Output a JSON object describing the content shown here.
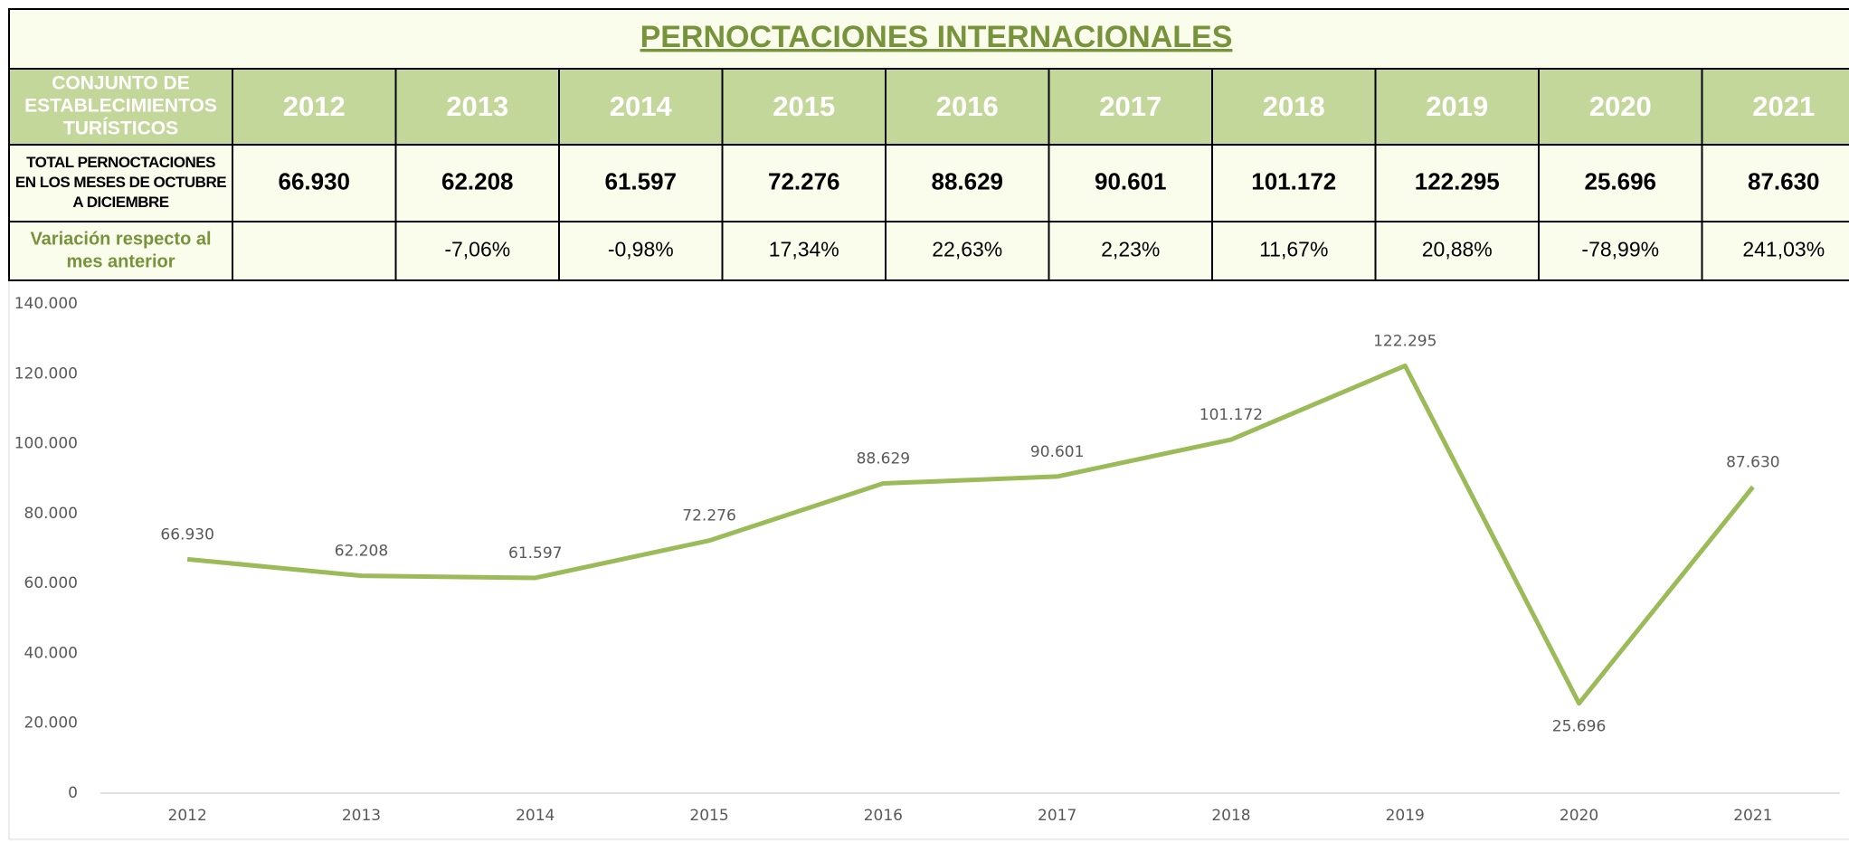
{
  "table": {
    "title": "PERNOCTACIONES INTERNACIONALES",
    "corner": [
      "CONJUNTO DE",
      "ESTABLECIMIENTOS",
      "TURÍSTICOS"
    ],
    "years": [
      "2012",
      "2013",
      "2014",
      "2015",
      "2016",
      "2017",
      "2018",
      "2019",
      "2020",
      "2021"
    ],
    "rows": [
      {
        "label": [
          "TOTAL PERNOCTACIONES",
          "EN LOS MESES DE OCTUBRE",
          "A DICIEMBRE"
        ],
        "cells": [
          "66.930",
          "62.208",
          "61.597",
          "72.276",
          "88.629",
          "90.601",
          "101.172",
          "122.295",
          "25.696",
          "87.630"
        ]
      },
      {
        "label": [
          "Variación respecto al",
          "mes anterior"
        ],
        "cells": [
          null,
          "-7,06%",
          "-0,98%",
          "17,34%",
          "22,63%",
          "2,23%",
          "11,67%",
          "20,88%",
          "-78,99%",
          "241,03%"
        ]
      }
    ]
  },
  "chart_data": {
    "type": "line",
    "categories": [
      "2012",
      "2013",
      "2014",
      "2015",
      "2016",
      "2017",
      "2018",
      "2019",
      "2020",
      "2021"
    ],
    "values": [
      66930,
      62208,
      61597,
      72276,
      88629,
      90601,
      101172,
      122295,
      25696,
      87630
    ],
    "value_labels": [
      "66.930",
      "62.208",
      "61.597",
      "72.276",
      "88.629",
      "90.601",
      "101.172",
      "122.295",
      "25.696",
      "87.630"
    ],
    "color": "#9bbb59",
    "ylim": [
      0,
      140000
    ],
    "yticks": [
      0,
      {
        "value": 20000,
        "label": "20.000"
      },
      {
        "value": 40000,
        "label": "40.000"
      },
      {
        "value": 60000,
        "label": "60.000"
      },
      {
        "value": 80000,
        "label": "80.000"
      },
      {
        "value": 100000,
        "label": "100.000"
      },
      {
        "value": 120000,
        "label": "120.000"
      },
      {
        "value": 140000,
        "label": "140.000"
      }
    ],
    "grid": false
  }
}
